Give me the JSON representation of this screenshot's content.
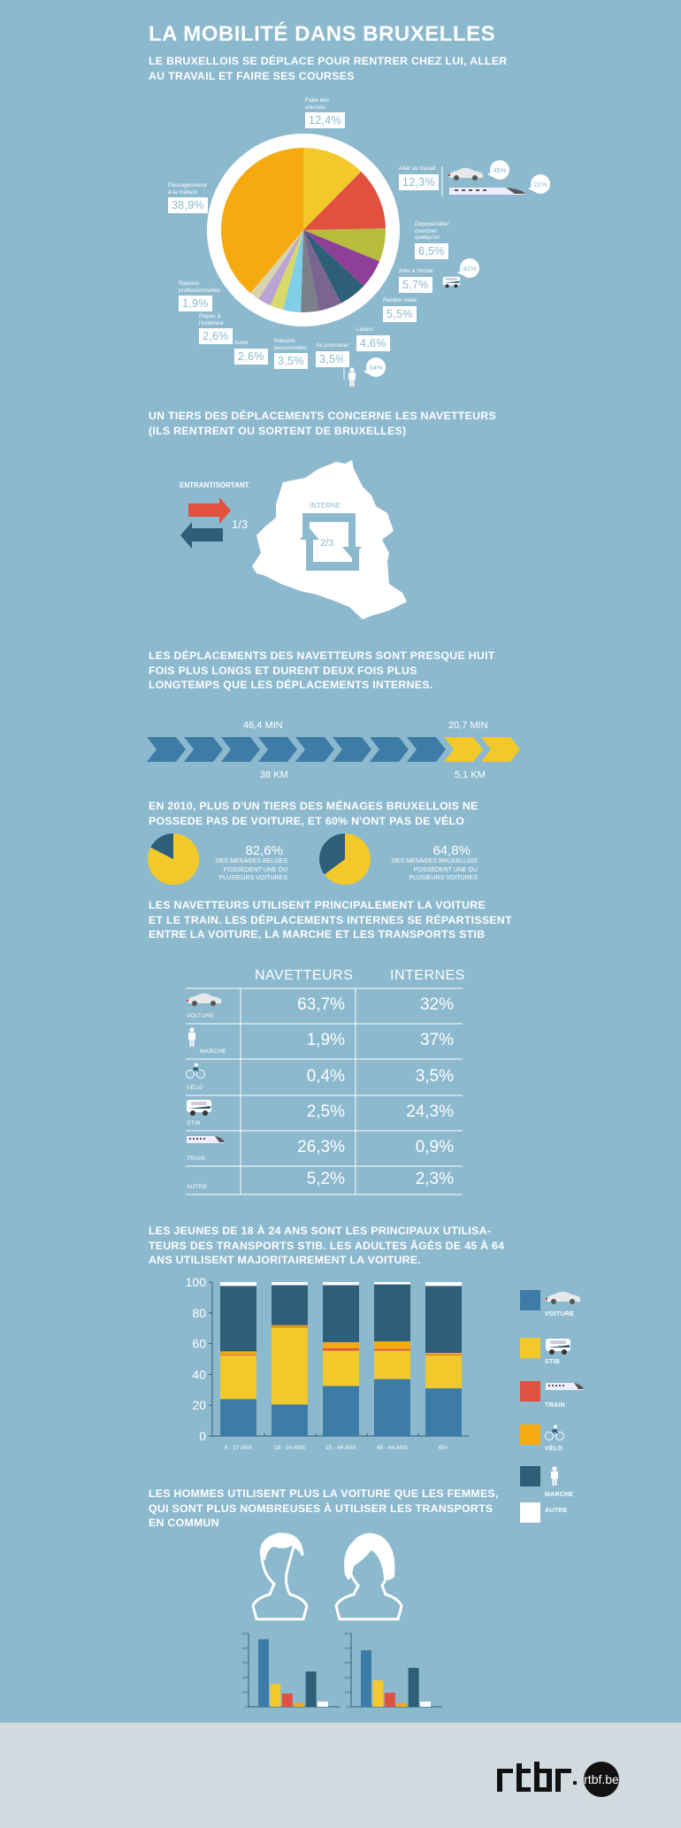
{
  "title": "LA MOBILITÉ DANS BRUXELLES",
  "colors": {
    "background": "#8cb9ce",
    "dark_blue": "#2e5f78",
    "blue": "#3d7ca6",
    "yellow": "#f2c82a",
    "red": "#e0513f",
    "orange": "#f5ab10",
    "white": "#ffffff",
    "footer": "#d1dadf"
  },
  "section1": {
    "heading": "LE BRUXELLOIS SE DÉPLACE POUR RENTRER CHEZ LUI, ALLER\nAU TRAVAIL ET FAIRE SES COURSES",
    "callouts": {
      "car": "45%",
      "train": "21%",
      "bus": "41%",
      "walk": "64%"
    }
  },
  "section2": {
    "heading": "UN TIERS DES DÉPLACEMENTS CONCERNE LES NAVETTEURS\n(ILS RENTRENT OU SORTENT DE BRUXELLES)",
    "external_label": "ENTRANT/SORTANT",
    "external_value": "1/3",
    "internal_label": "INTERNE",
    "internal_value": "2/3"
  },
  "section3": {
    "heading": "LES DÉPLACEMENTS DES NAVETTEURS SONT PRESQUE HUIT\nFOIS PLUS LONGS ET DURENT DEUX FOIS PLUS\nLONGTEMPS QUE LES DÉPLACEMENTS INTERNES.",
    "commuter_time": "46,4 MIN",
    "commuter_distance": "38 KM",
    "internal_time": "20,7 MIN",
    "internal_distance": "5,1 KM"
  },
  "section4": {
    "heading": "EN 2010, PLUS D'UN TIERS DES MÉNAGES BRUXELLOIS NE\nPOSSEDE PAS DE VOITURE, ET 60% N'ONT PAS DE VÉLO",
    "pie1": {
      "value": "82,6%",
      "text": "DES MÉNAGES BELGES\nPOSSÈDENT UNE OU\nPLUSIEURS VOITURES"
    },
    "pie2": {
      "value": "64,8%",
      "text": "DES MÉNAGES BRUXELLOIS\nPOSSÈDENT UNE OU\nPLUSIEURS VOITURES"
    }
  },
  "section5": {
    "heading": "LES NAVETTEURS UTILISENT PRINCIPALEMENT LA VOITURE\nET LE TRAIN. LES DÉPLACEMENTS INTERNES SE RÉPARTISSENT\nENTRE LA VOITURE, LA MARCHE ET LES TRANSPORTS STIB",
    "columns": [
      "NAVETTEURS",
      "INTERNES"
    ],
    "rows": [
      {
        "mode": "VOITURE",
        "icon": "car-icon",
        "navetteurs": "63,7%",
        "internes": "32%"
      },
      {
        "mode": "MARCHE",
        "icon": "walker-icon",
        "navetteurs": "1,9%",
        "internes": "37%"
      },
      {
        "mode": "VÉLO",
        "icon": "bike-icon",
        "navetteurs": "0,4%",
        "internes": "3,5%"
      },
      {
        "mode": "STIB",
        "icon": "bus-icon",
        "navetteurs": "2,5%",
        "internes": "24,3%"
      },
      {
        "mode": "TRAIN",
        "icon": "train-icon",
        "navetteurs": "26,3%",
        "internes": "0,9%"
      },
      {
        "mode": "AUTRE",
        "icon": "",
        "navetteurs": "5,2%",
        "internes": "2,3%"
      }
    ]
  },
  "section6": {
    "heading": "LES JEUNES DE 18 À 24 ANS SONT LES PRINCIPAUX UTILISA-\nTEURS DES TRANSPORTS STIB. LES ADULTES ÂGÉS DE 45 À 64\nANS UTILISENT MAJORITAIREMENT LA VOITURE.",
    "legend": [
      {
        "label": "VOITURE",
        "color": "#3d7ca6",
        "icon": "car-icon"
      },
      {
        "label": "STIB",
        "color": "#f2c82a",
        "icon": "bus-icon"
      },
      {
        "label": "TRAIN",
        "color": "#e0513f",
        "icon": "train-icon"
      },
      {
        "label": "VÉLO",
        "color": "#f5ab10",
        "icon": "bike-icon"
      },
      {
        "label": "MARCHE",
        "color": "#2e5f78",
        "icon": "walker-icon"
      },
      {
        "label": "AUTRE",
        "color": "#ffffff",
        "icon": ""
      }
    ]
  },
  "section7": {
    "heading": "LES HOMMES UTILISENT PLUS LA VOITURE QUE LES FEMMES,\nQUI SONT PLUS NOMBREUSES À UTILISER LES TRANSPORTS\nEN COMMUN"
  },
  "footer": {
    "logo": "rtbf.be"
  },
  "chart_data": [
    {
      "type": "pie",
      "slices": [
        {
          "label": "Faire des\ncourses",
          "value": 12.4,
          "display": "12,4%",
          "color": "#f2c82a"
        },
        {
          "label": "Aller au travail",
          "value": 12.3,
          "display": "12,3%",
          "color": "#e0513f"
        },
        {
          "label": "Déposer/aller\nchercher\nquelqu'un",
          "value": 6.5,
          "display": "6,5%",
          "color": "#b5bd3a"
        },
        {
          "label": "Aller à l'école",
          "value": 5.7,
          "display": "5,7%",
          "color": "#8e3f97"
        },
        {
          "label": "Rendre visite",
          "value": 5.5,
          "display": "5,5%",
          "color": "#2e5f78"
        },
        {
          "label": "Loisirs",
          "value": 4.6,
          "display": "4,6%",
          "color": "#7a6590"
        },
        {
          "label": "Se promener",
          "value": 3.5,
          "display": "3,5%",
          "color": "#7b7f8a"
        },
        {
          "label": "Raisons\npersonnelles",
          "value": 3.5,
          "display": "3,5%",
          "color": "#7fcfe9"
        },
        {
          "label": "Autre",
          "value": 2.6,
          "display": "2,6%",
          "color": "#d9d86a"
        },
        {
          "label": "Repas à\nl'extérieur",
          "value": 2.6,
          "display": "2,6%",
          "color": "#b9a4d4"
        },
        {
          "label": "Raisons\nprofessionnelles",
          "value": 1.9,
          "display": "1,9%",
          "color": "#d8d4b0"
        },
        {
          "label": "Passage/retour\nà la maison",
          "value": 38.9,
          "display": "38,9%",
          "color": "#f5ab10"
        }
      ]
    },
    {
      "type": "pie",
      "values": [
        82.6,
        17.4
      ],
      "colors": [
        "#f2c82a",
        "#2e5f78"
      ]
    },
    {
      "type": "pie",
      "values": [
        64.8,
        35.2
      ],
      "colors": [
        "#f2c82a",
        "#2e5f78"
      ]
    },
    {
      "type": "bar",
      "stacked": true,
      "categories": [
        "6 - 17 ANS",
        "18 - 24 ANS",
        "25 - 44 ANS",
        "45 - 64 ANS",
        "65+"
      ],
      "ylim": [
        0,
        100
      ],
      "yticks": [
        "0",
        "20",
        "40",
        "60",
        "80",
        "100"
      ],
      "series": [
        {
          "name": "VOITURE",
          "color": "#3d7ca6",
          "values": [
            24,
            20.5,
            32.5,
            37,
            31
          ]
        },
        {
          "name": "STIB",
          "color": "#f2c82a",
          "values": [
            28.5,
            50,
            23,
            18.5,
            21.5
          ]
        },
        {
          "name": "TRAIN",
          "color": "#e0513f",
          "values": [
            0.5,
            0.5,
            1.5,
            1,
            0.5
          ]
        },
        {
          "name": "VÉLO",
          "color": "#f5ab10",
          "values": [
            2,
            1,
            4,
            5,
            1
          ]
        },
        {
          "name": "MARCHE",
          "color": "#2e5f78",
          "values": [
            42.5,
            26,
            37,
            37,
            43.5
          ]
        },
        {
          "name": "AUTRE",
          "color": "#ffffff",
          "values": [
            2.5,
            2,
            2,
            1.5,
            2.5
          ]
        }
      ]
    },
    {
      "type": "bar",
      "categories": [
        "VOITURE",
        "STIB",
        "TRAIN",
        "VÉLO",
        "MARCHE",
        "AUTRE"
      ],
      "colors": [
        "#3d7ca6",
        "#f2c82a",
        "#e0513f",
        "#f5ab10",
        "#2e5f78",
        "#ffffff"
      ],
      "values": [
        46,
        15.5,
        9,
        2.5,
        24,
        3.5
      ],
      "ylim": [
        0,
        50
      ],
      "yticks": [
        "0",
        "10",
        "20",
        "30",
        "40",
        "50"
      ]
    },
    {
      "type": "bar",
      "categories": [
        "VOITURE",
        "STIB",
        "TRAIN",
        "VÉLO",
        "MARCHE",
        "AUTRE"
      ],
      "colors": [
        "#3d7ca6",
        "#f2c82a",
        "#e0513f",
        "#f5ab10",
        "#2e5f78",
        "#ffffff"
      ],
      "values": [
        38.5,
        18,
        9.5,
        2.5,
        26.5,
        3.5
      ],
      "ylim": [
        0,
        50
      ],
      "yticks": [
        "0",
        "10",
        "20",
        "30",
        "40",
        "50"
      ]
    }
  ]
}
